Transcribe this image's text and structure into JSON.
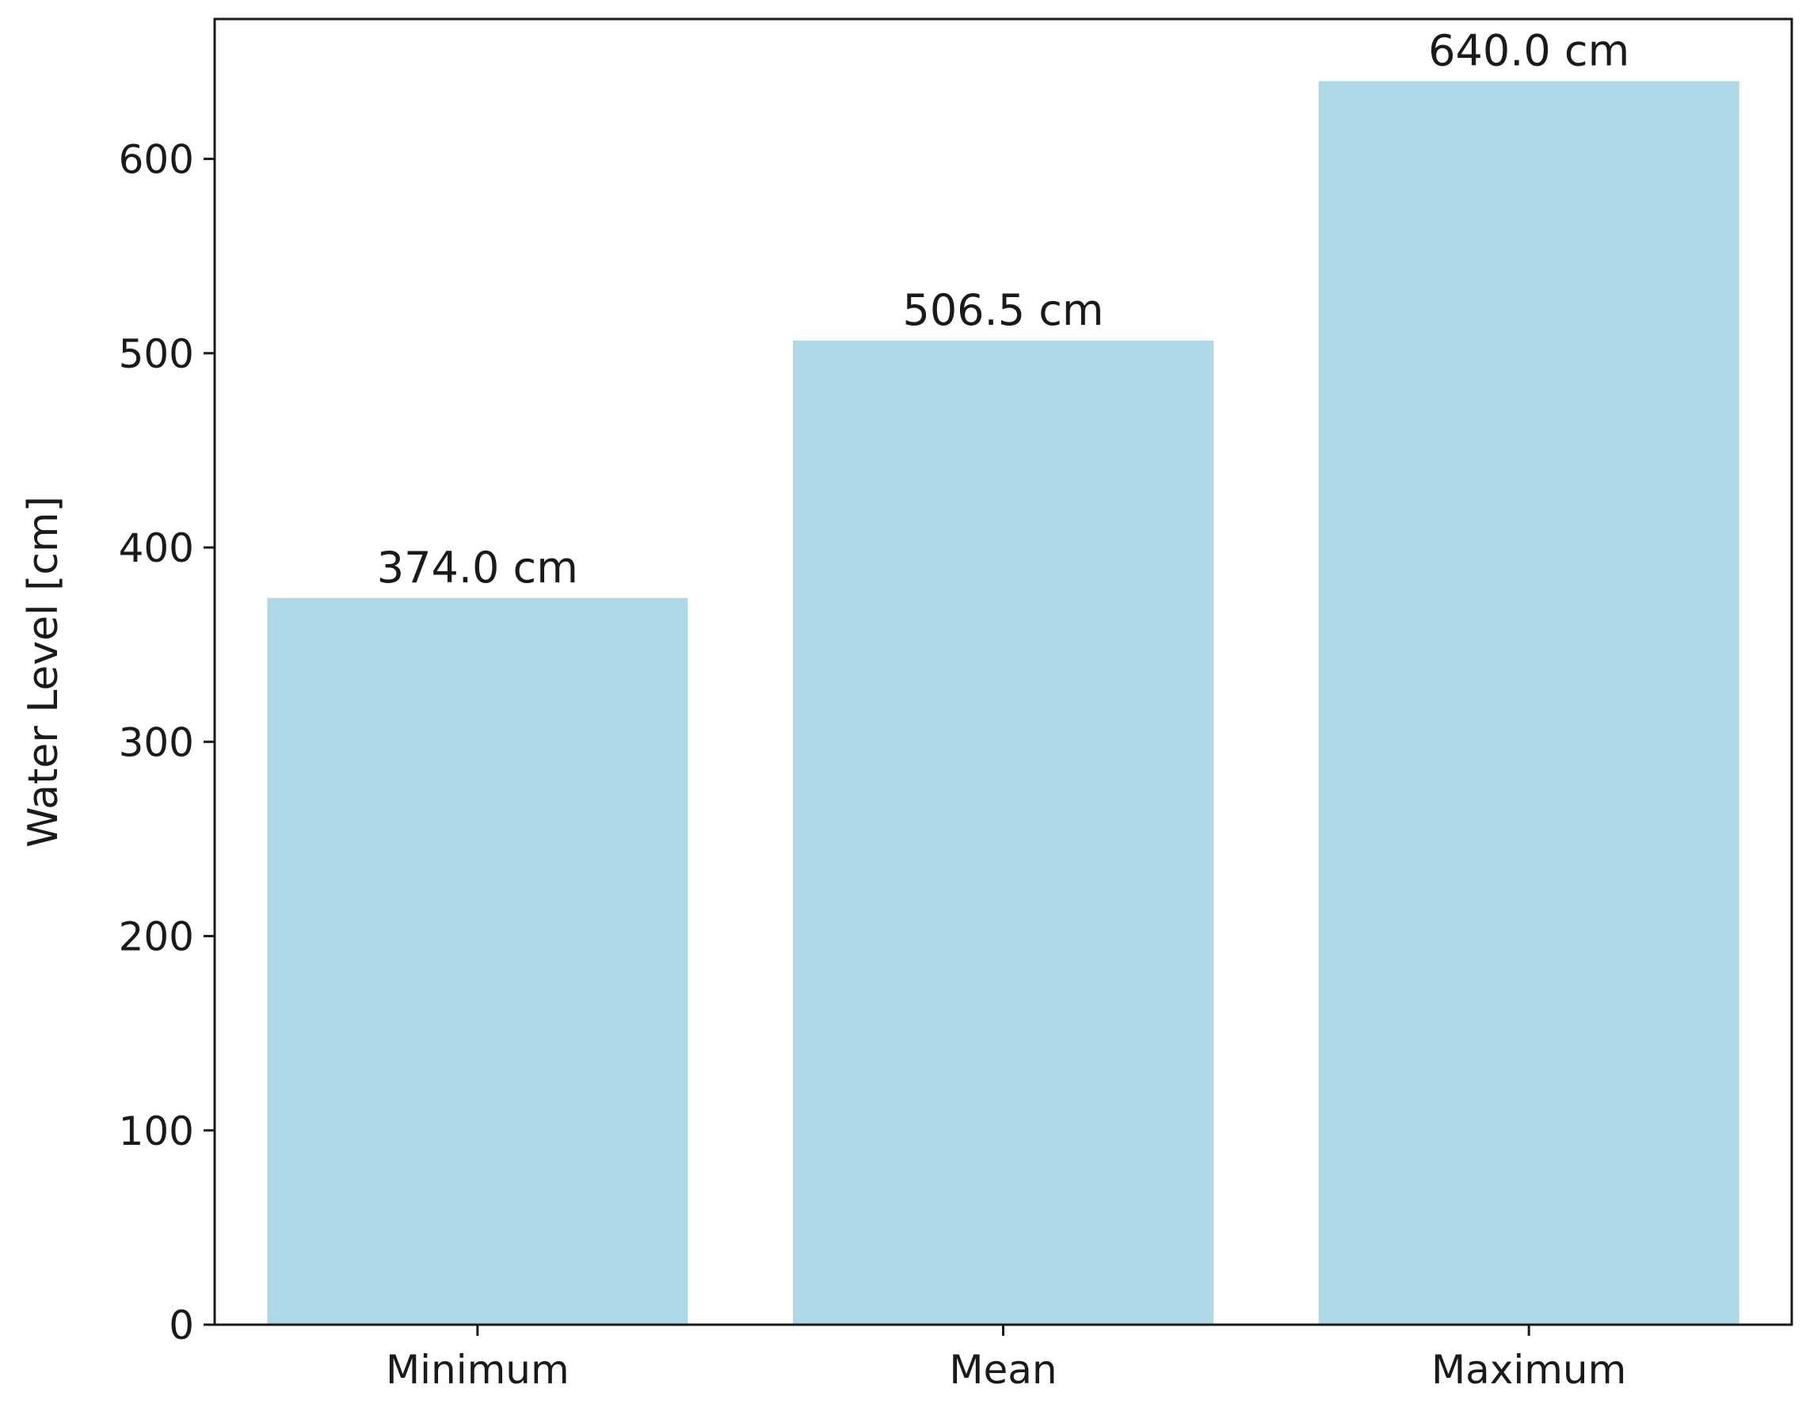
{
  "chart_data": {
    "type": "bar",
    "title": "",
    "xlabel": "",
    "ylabel": "Water Level [cm]",
    "categories": [
      "Minimum",
      "Mean",
      "Maximum"
    ],
    "values": [
      374.0,
      506.5,
      640.0
    ],
    "data_labels": [
      "374.0 cm",
      "506.5 cm",
      "640.0 cm"
    ],
    "ylim": [
      0,
      672
    ],
    "yticks": [
      0,
      100,
      200,
      300,
      400,
      500,
      600
    ],
    "ytick_labels": [
      "0",
      "100",
      "200",
      "300",
      "400",
      "500",
      "600"
    ],
    "bar_color": "#add8e6",
    "grid": false,
    "legend": "none"
  }
}
